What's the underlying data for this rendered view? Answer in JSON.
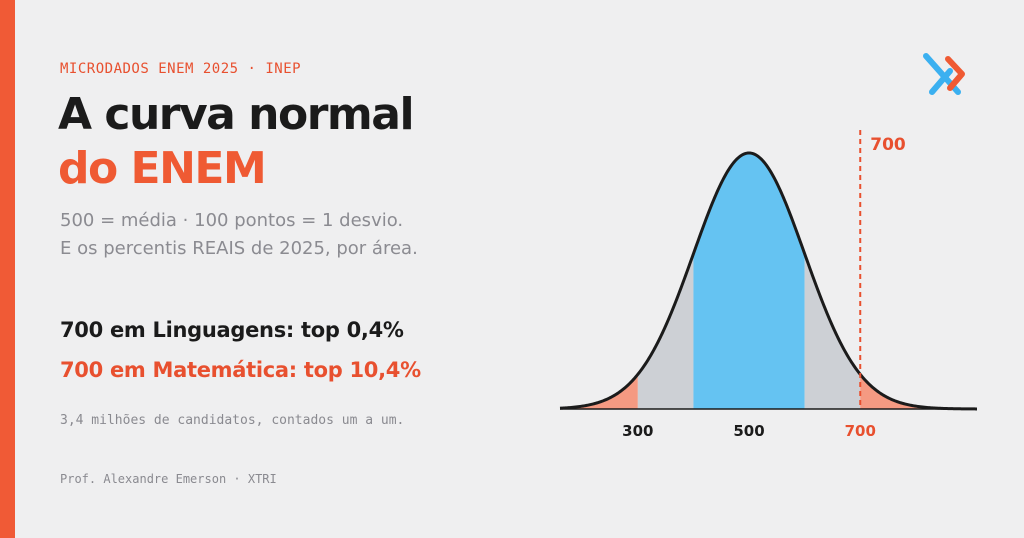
{
  "header": {
    "kicker": "MICRODADOS ENEM 2025 · INEP",
    "title_line1": "A curva normal",
    "title_line2": "do ENEM",
    "subtitle_line1": "500 = média · 100 pontos = 1 desvio.",
    "subtitle_line2": "E os percentis REAIS de 2025, por área."
  },
  "stats": {
    "linguagens": "700 em Linguagens: top 0,4%",
    "matematica": "700 em Matemática: top 10,4%"
  },
  "footnote": "3,4 milhões de candidatos, contados um a um.",
  "author": "Prof. Alexandre Emerson · XTRI",
  "logo": {
    "icon": "xtri-x-logo",
    "colors": [
      "#3bb0f0",
      "#ef5a33"
    ]
  },
  "chart_data": {
    "type": "area",
    "distribution": "normal",
    "mean": 500,
    "sd": 100,
    "xlim": [
      160,
      910
    ],
    "bands": [
      {
        "from": 160,
        "to": 300,
        "color": "#f59a82"
      },
      {
        "from": 300,
        "to": 400,
        "color": "#cdd0d5"
      },
      {
        "from": 400,
        "to": 600,
        "color": "#65c3f2"
      },
      {
        "from": 600,
        "to": 700,
        "color": "#cdd0d5"
      },
      {
        "from": 700,
        "to": 910,
        "color": "#f59a82"
      }
    ],
    "x_tick_labels": [
      {
        "value": 300,
        "label": "300",
        "color": "#1b1b1b"
      },
      {
        "value": 500,
        "label": "500",
        "color": "#1b1b1b"
      },
      {
        "value": 700,
        "label": "700",
        "color": "#e8502f"
      }
    ],
    "marker": {
      "value": 700,
      "label": "700",
      "color": "#e8502f",
      "style": "dashed"
    },
    "grid": false,
    "legend": "none"
  }
}
